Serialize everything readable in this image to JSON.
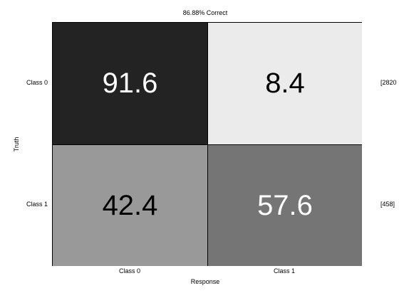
{
  "chart_data": {
    "type": "heatmap",
    "title": "86.88% Correct",
    "xlabel": "Response",
    "ylabel": "Truth",
    "x_categories": [
      "Class 0",
      "Class 1"
    ],
    "y_categories": [
      "Class 0",
      "Class 1"
    ],
    "values": [
      [
        91.6,
        8.4
      ],
      [
        42.4,
        57.6
      ]
    ],
    "value_labels": [
      [
        "91.6",
        "8.4"
      ],
      [
        "42.4",
        "57.6"
      ]
    ],
    "row_counts": [
      "[2820",
      "[458]"
    ],
    "colormap": "grayscale: high values dark, low values light",
    "value_range": [
      0,
      100
    ]
  }
}
